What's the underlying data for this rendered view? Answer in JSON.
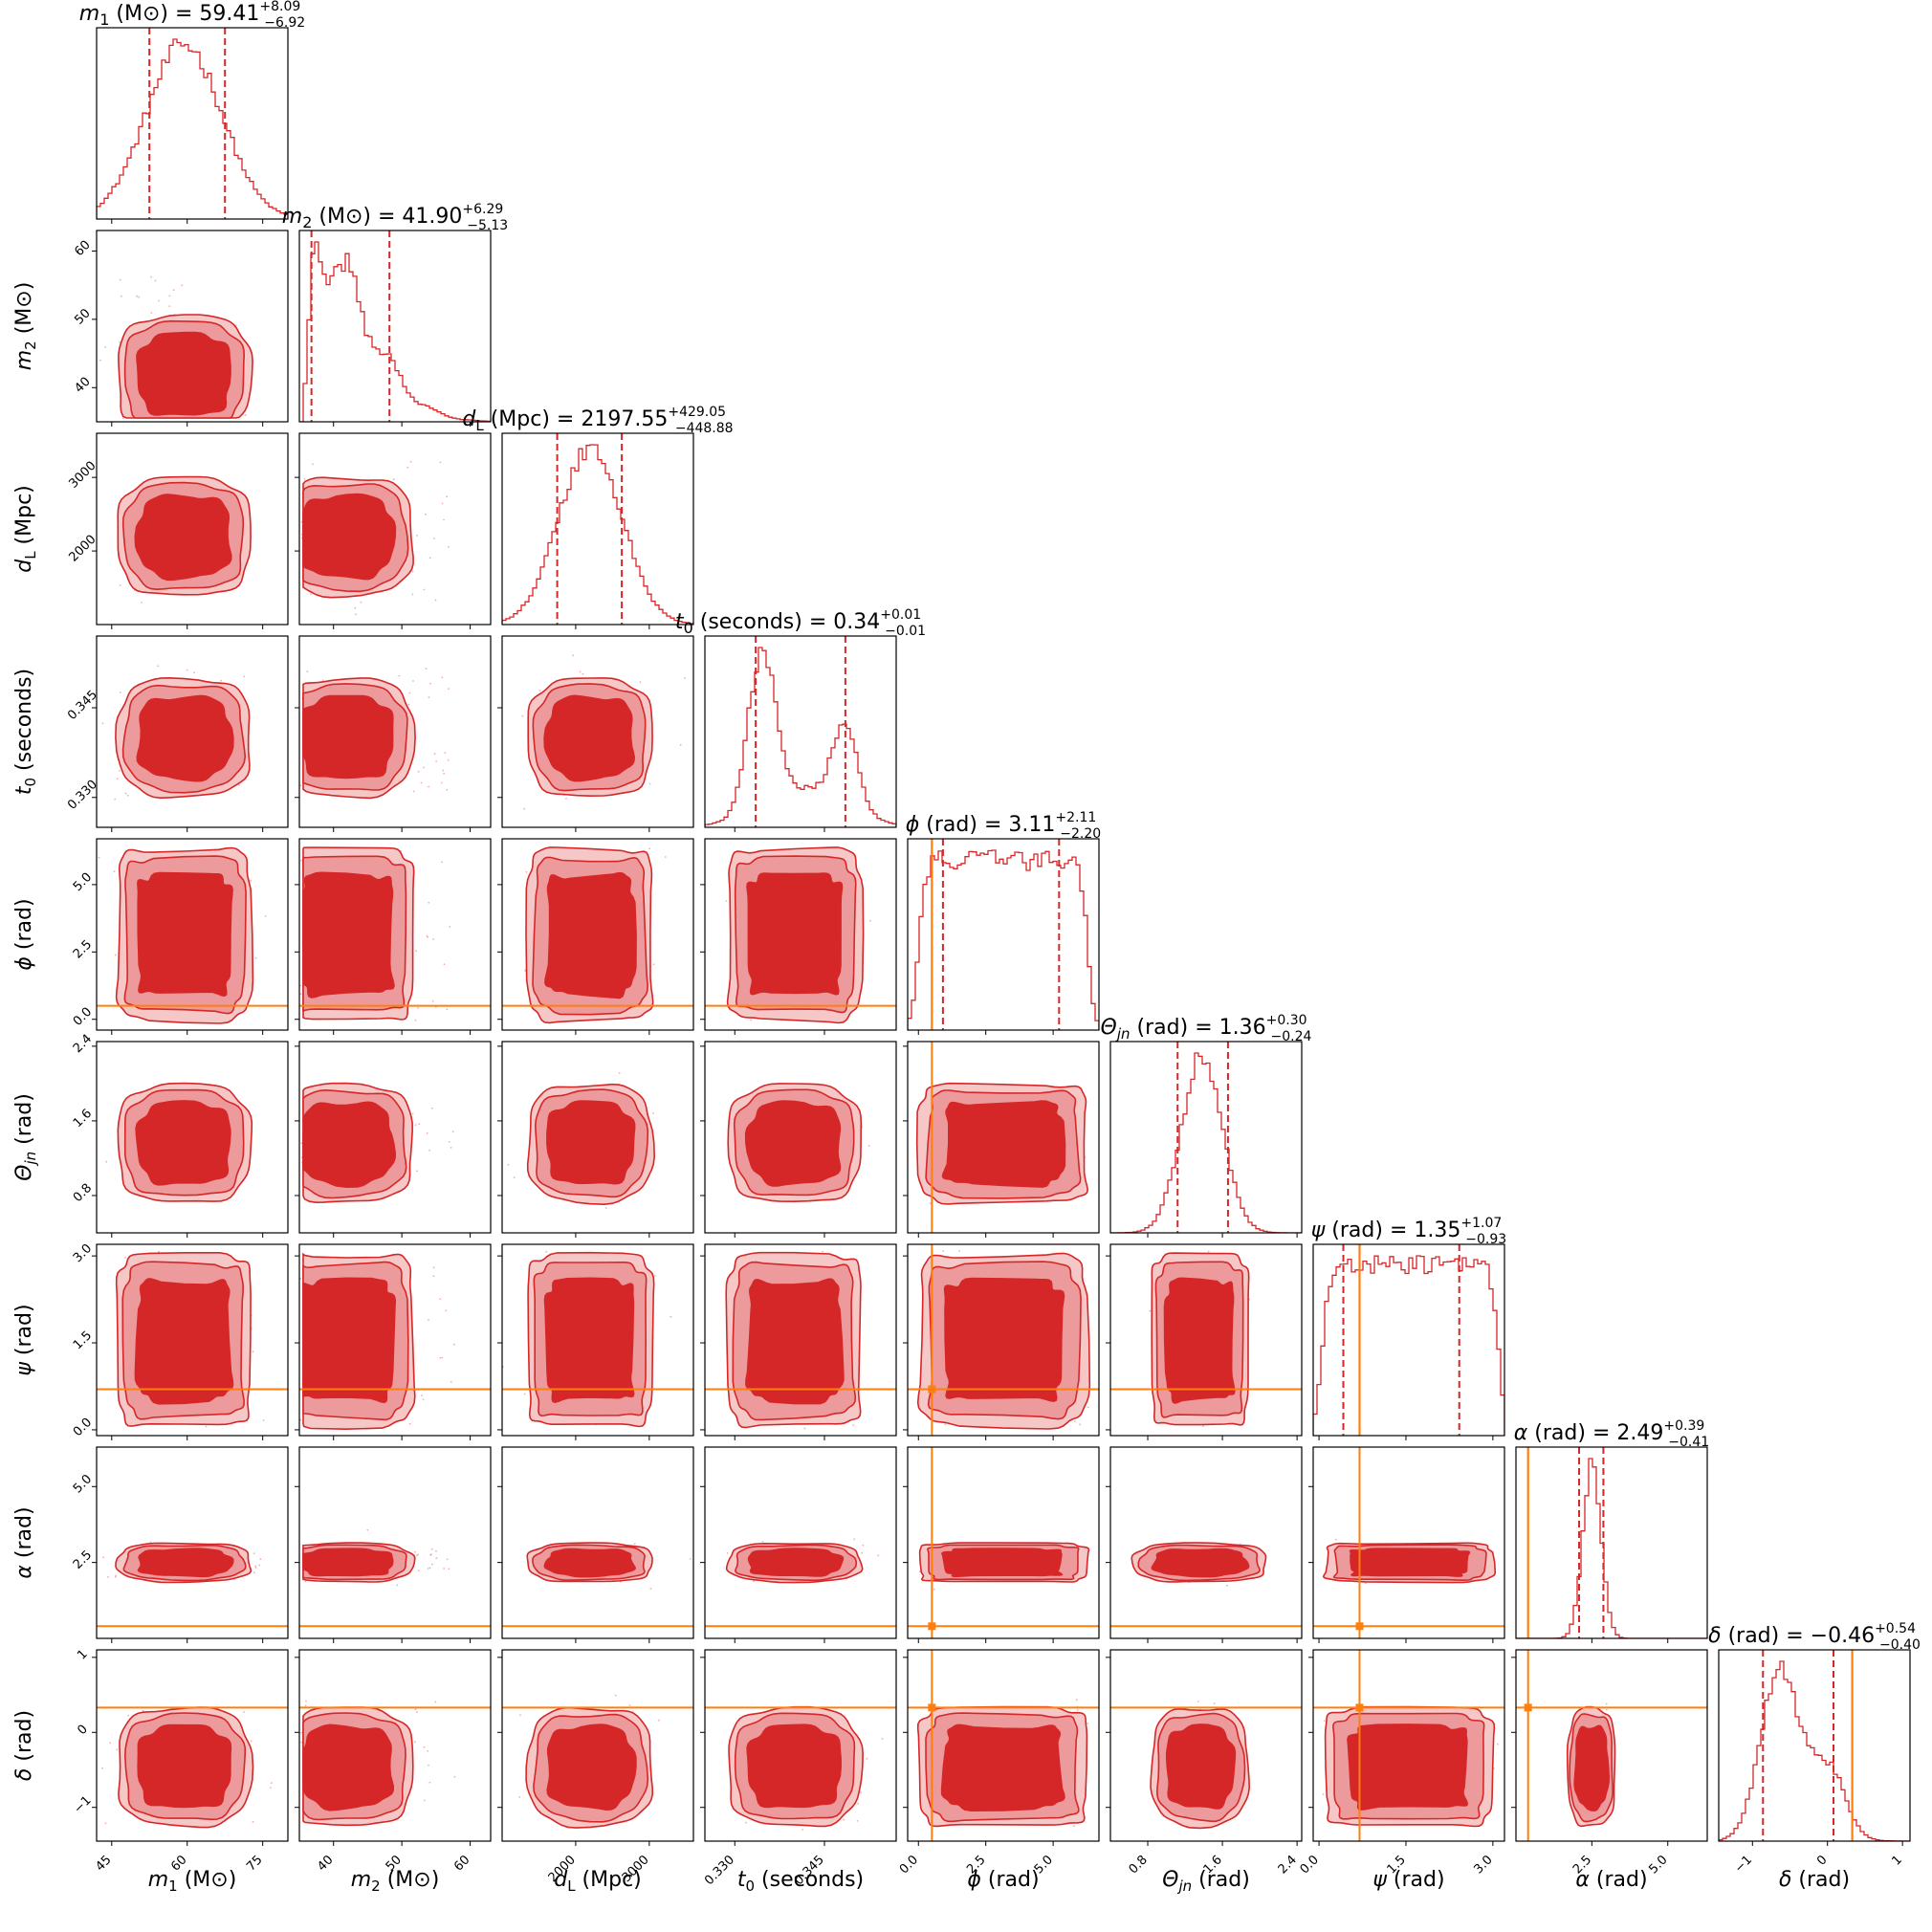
{
  "chart_data": {
    "type": "corner",
    "colors": {
      "posterior": "#d62728",
      "posterior_light": "#ec9a9b",
      "truth": "#ff7f0e"
    },
    "parameters": [
      {
        "key": "m1",
        "label": "m₁ (M⊙)",
        "title": "m₁ (M⊙) = 59.41",
        "median": 59.41,
        "err_plus": "+8.09",
        "err_minus": "−6.92",
        "range": [
          42,
          80
        ],
        "ticks": [
          45,
          60,
          75
        ],
        "tick_labels": [
          "45",
          "60",
          "75"
        ],
        "quantiles": [
          52.49,
          67.5
        ],
        "dist": {
          "type": "gauss",
          "mean": 59.4,
          "sd": 7.5
        },
        "truth": null
      },
      {
        "key": "m2",
        "label": "m₂ (M⊙)",
        "title": "m₂ (M⊙) = 41.90",
        "median": 41.9,
        "err_plus": "+6.29",
        "err_minus": "−5.13",
        "range": [
          35,
          63
        ],
        "ticks": [
          40,
          50,
          60
        ],
        "tick_labels": [
          "40",
          "50",
          "60"
        ],
        "quantiles": [
          36.77,
          48.19
        ],
        "dist": {
          "type": "skew",
          "lo": 35.5,
          "peak": 37,
          "hi": 58
        },
        "truth": null
      },
      {
        "key": "dL",
        "label": "d_L (Mpc)",
        "title": "d_L (Mpc) = 2197.55",
        "median": 2197.55,
        "err_plus": "+429.05",
        "err_minus": "−448.88",
        "range": [
          1000,
          3600
        ],
        "ticks": [
          2000,
          3000
        ],
        "tick_labels": [
          "2000",
          "3000"
        ],
        "quantiles": [
          1748.67,
          2626.6
        ],
        "dist": {
          "type": "gauss",
          "mean": 2200,
          "sd": 430
        },
        "truth": null
      },
      {
        "key": "t0",
        "label": "t₀ (seconds)",
        "title": "t₀ (seconds) = 0.34",
        "median": 0.34,
        "err_plus": "+0.01",
        "err_minus": "−0.01",
        "range": [
          0.325,
          0.357
        ],
        "ticks": [
          0.33,
          0.345
        ],
        "tick_labels": [
          "0.330",
          "0.345"
        ],
        "quantiles": [
          0.3335,
          0.3485
        ],
        "dist": {
          "type": "bimodal",
          "m1": 0.3345,
          "s1": 0.0022,
          "m2": 0.3485,
          "s2": 0.002,
          "w2": 0.55
        },
        "truth": null
      },
      {
        "key": "phi",
        "label": "ϕ (rad)",
        "title": "ϕ (rad) = 3.11",
        "median": 3.11,
        "err_plus": "+2.11",
        "err_minus": "−2.20",
        "range": [
          -0.4,
          6.7
        ],
        "ticks": [
          0.0,
          2.5,
          5.0
        ],
        "tick_labels": [
          "0.0",
          "2.5",
          "5.0"
        ],
        "quantiles": [
          0.91,
          5.22
        ],
        "dist": {
          "type": "flat",
          "lo": 0.0,
          "hi": 6.28
        },
        "truth": 0.5
      },
      {
        "key": "thjn",
        "label": "Θ_jn (rad)",
        "title": "Θ_jn (rad) = 1.36",
        "median": 1.36,
        "err_plus": "+0.30",
        "err_minus": "−0.24",
        "range": [
          0.4,
          2.45
        ],
        "ticks": [
          0.8,
          1.6,
          2.4
        ],
        "tick_labels": [
          "0.8",
          "1.6",
          "2.4"
        ],
        "quantiles": [
          1.12,
          1.66
        ],
        "dist": {
          "type": "gauss",
          "mean": 1.38,
          "sd": 0.22
        },
        "truth": null
      },
      {
        "key": "psi",
        "label": "ψ (rad)",
        "title": "ψ (rad) = 1.35",
        "median": 1.35,
        "err_plus": "+1.07",
        "err_minus": "−0.93",
        "range": [
          -0.1,
          3.2
        ],
        "ticks": [
          0.0,
          1.5,
          3.0
        ],
        "tick_labels": [
          "0.0",
          "1.5",
          "3.0"
        ],
        "quantiles": [
          0.42,
          2.42
        ],
        "dist": {
          "type": "flat",
          "lo": 0.05,
          "hi": 3.1
        },
        "truth": 0.7
      },
      {
        "key": "alpha",
        "label": "α (rad)",
        "title": "α (rad) = 2.49",
        "median": 2.49,
        "err_plus": "+0.39",
        "err_minus": "−0.41",
        "range": [
          0,
          6.3
        ],
        "ticks": [
          2.5,
          5.0
        ],
        "tick_labels": [
          "2.5",
          "5.0"
        ],
        "quantiles": [
          2.08,
          2.88
        ],
        "dist": {
          "type": "gauss",
          "mean": 2.5,
          "sd": 0.3
        },
        "truth": 0.4
      },
      {
        "key": "delta",
        "label": "δ (rad)",
        "title": "δ (rad) = −0.46",
        "median": -0.46,
        "err_plus": "+0.54",
        "err_minus": "−0.40",
        "range": [
          -1.45,
          1.1
        ],
        "ticks": [
          -1,
          0,
          1
        ],
        "tick_labels": [
          "−1",
          "0",
          "1"
        ],
        "quantiles": [
          -0.86,
          0.08
        ],
        "dist": {
          "type": "bimodal",
          "m1": -0.65,
          "s1": 0.25,
          "m2": 0.05,
          "s2": 0.2,
          "w2": 0.35
        },
        "truth": 0.33
      }
    ]
  }
}
